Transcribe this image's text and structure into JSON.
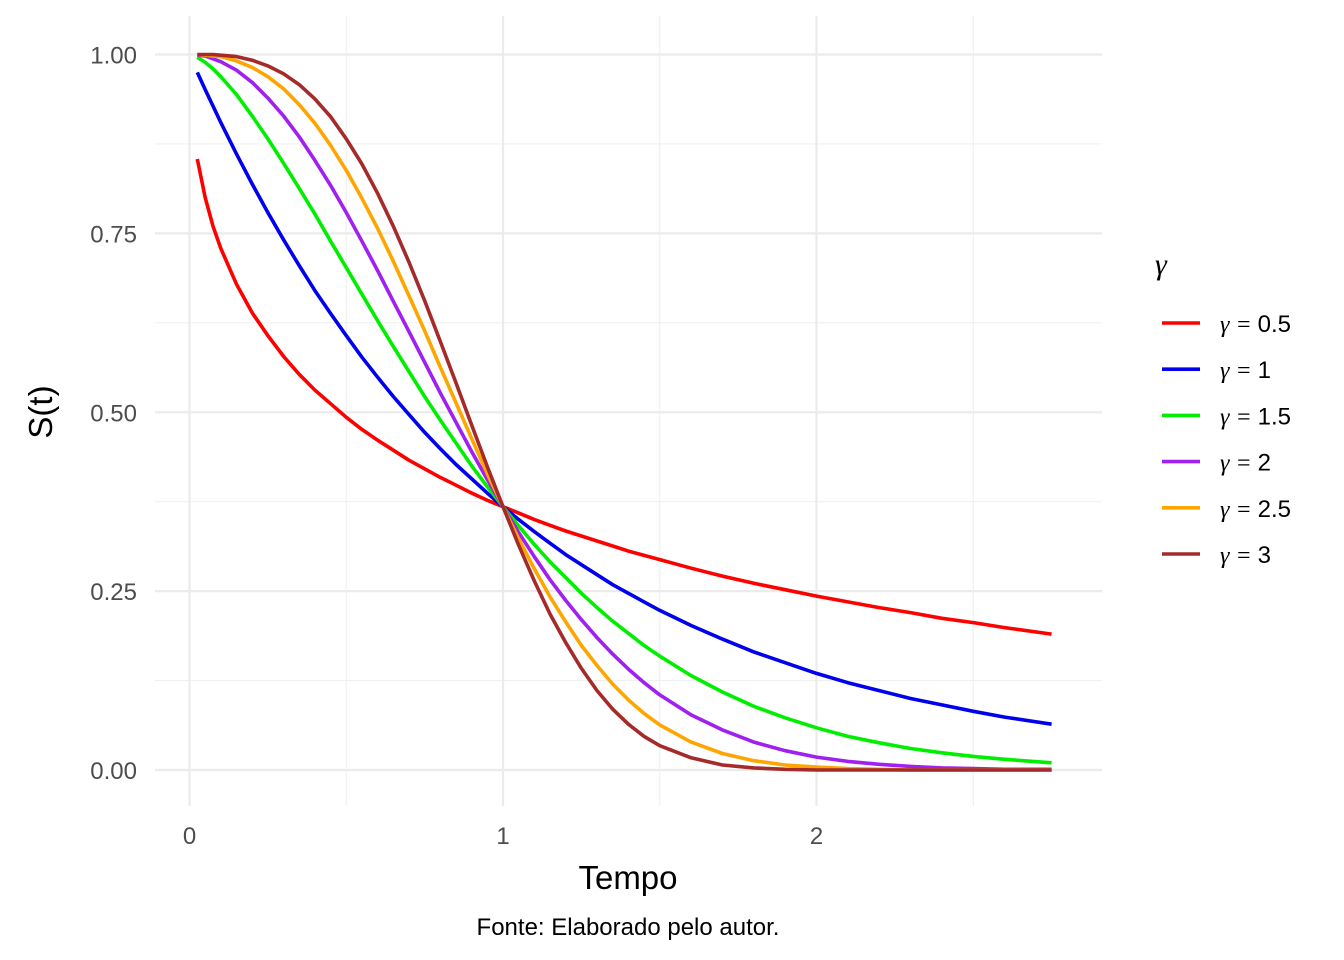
{
  "chart_data": {
    "type": "line",
    "title": "",
    "xlabel": "Tempo",
    "ylabel": "S(t)",
    "caption": "Fonte: Elaborado pelo autor.",
    "xlim": [
      0,
      2.8
    ],
    "ylim": [
      -0.04,
      1.04
    ],
    "x_ticks": [
      0,
      1,
      2
    ],
    "x_tick_labels": [
      "0",
      "1",
      "2"
    ],
    "y_ticks": [
      0,
      0.25,
      0.5,
      0.75,
      1
    ],
    "y_tick_labels": [
      "0.00",
      "0.25",
      "0.50",
      "0.75",
      "1.00"
    ],
    "grid": true,
    "legend": {
      "title": "γ",
      "position": "right",
      "prefix": "γ ="
    },
    "x": [
      0.025,
      0.05,
      0.075,
      0.1,
      0.15,
      0.2,
      0.25,
      0.3,
      0.35,
      0.4,
      0.45,
      0.5,
      0.55,
      0.6,
      0.65,
      0.7,
      0.75,
      0.8,
      0.85,
      0.9,
      0.95,
      1.0,
      1.05,
      1.1,
      1.15,
      1.2,
      1.25,
      1.3,
      1.35,
      1.4,
      1.45,
      1.5,
      1.6,
      1.7,
      1.8,
      1.9,
      2.0,
      2.1,
      2.2,
      2.3,
      2.4,
      2.5,
      2.6,
      2.75
    ],
    "series": [
      {
        "name": "0.5",
        "color": "#ff0000",
        "values": [
          0.854,
          0.8,
          0.76,
          0.729,
          0.679,
          0.639,
          0.607,
          0.578,
          0.553,
          0.531,
          0.512,
          0.493,
          0.476,
          0.461,
          0.447,
          0.433,
          0.421,
          0.409,
          0.398,
          0.387,
          0.377,
          0.368,
          0.359,
          0.35,
          0.342,
          0.334,
          0.327,
          0.32,
          0.313,
          0.306,
          0.3,
          0.294,
          0.282,
          0.271,
          0.261,
          0.252,
          0.243,
          0.235,
          0.227,
          0.22,
          0.212,
          0.206,
          0.199,
          0.19
        ]
      },
      {
        "name": "1",
        "color": "#0000ee",
        "values": [
          0.975,
          0.951,
          0.928,
          0.905,
          0.861,
          0.819,
          0.779,
          0.741,
          0.705,
          0.67,
          0.638,
          0.607,
          0.577,
          0.549,
          0.522,
          0.497,
          0.472,
          0.449,
          0.427,
          0.407,
          0.387,
          0.368,
          0.35,
          0.333,
          0.317,
          0.301,
          0.287,
          0.273,
          0.259,
          0.247,
          0.235,
          0.223,
          0.202,
          0.183,
          0.165,
          0.15,
          0.135,
          0.122,
          0.111,
          0.1,
          0.091,
          0.082,
          0.074,
          0.064
        ]
      },
      {
        "name": "1.5",
        "color": "#00ee00",
        "values": [
          0.996,
          0.989,
          0.98,
          0.969,
          0.944,
          0.914,
          0.882,
          0.848,
          0.813,
          0.777,
          0.739,
          0.702,
          0.665,
          0.628,
          0.592,
          0.557,
          0.522,
          0.489,
          0.457,
          0.425,
          0.396,
          0.368,
          0.341,
          0.315,
          0.291,
          0.269,
          0.247,
          0.227,
          0.208,
          0.191,
          0.174,
          0.159,
          0.132,
          0.109,
          0.089,
          0.073,
          0.059,
          0.047,
          0.038,
          0.03,
          0.024,
          0.019,
          0.015,
          0.01
        ]
      },
      {
        "name": "2",
        "color": "#a020f0",
        "values": [
          0.999,
          0.998,
          0.994,
          0.99,
          0.978,
          0.961,
          0.939,
          0.914,
          0.885,
          0.852,
          0.817,
          0.779,
          0.739,
          0.698,
          0.655,
          0.613,
          0.57,
          0.527,
          0.486,
          0.445,
          0.406,
          0.368,
          0.332,
          0.298,
          0.266,
          0.237,
          0.21,
          0.185,
          0.162,
          0.141,
          0.122,
          0.105,
          0.077,
          0.056,
          0.039,
          0.027,
          0.018,
          0.012,
          0.008,
          0.005,
          0.003,
          0.002,
          0.001,
          0.001
        ]
      },
      {
        "name": "2.5",
        "color": "#ffa500",
        "values": [
          1.0,
          0.999,
          0.998,
          0.997,
          0.991,
          0.982,
          0.969,
          0.952,
          0.93,
          0.904,
          0.873,
          0.838,
          0.799,
          0.757,
          0.711,
          0.663,
          0.614,
          0.563,
          0.513,
          0.463,
          0.414,
          0.368,
          0.323,
          0.281,
          0.242,
          0.207,
          0.174,
          0.146,
          0.12,
          0.098,
          0.079,
          0.063,
          0.039,
          0.023,
          0.013,
          0.007,
          0.004,
          0.002,
          0.001,
          0.0,
          0.0,
          0.0,
          0.0,
          0.0
        ]
      },
      {
        "name": "3",
        "color": "#a52a2a",
        "values": [
          1.0,
          1.0,
          1.0,
          0.999,
          0.997,
          0.992,
          0.984,
          0.973,
          0.958,
          0.938,
          0.913,
          0.882,
          0.847,
          0.806,
          0.76,
          0.71,
          0.656,
          0.599,
          0.541,
          0.482,
          0.424,
          0.368,
          0.314,
          0.264,
          0.218,
          0.178,
          0.142,
          0.111,
          0.085,
          0.064,
          0.047,
          0.034,
          0.017,
          0.007,
          0.003,
          0.001,
          0.0,
          0.0,
          0.0,
          0.0,
          0.0,
          0.0,
          0.0,
          0.0
        ]
      }
    ]
  }
}
